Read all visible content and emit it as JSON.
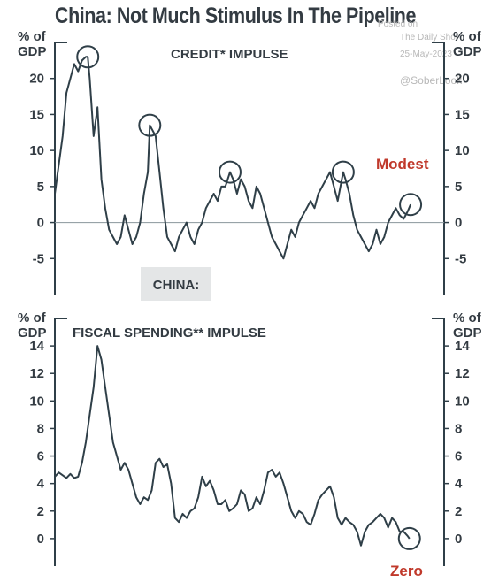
{
  "title": "China: Not Much Stimulus In The Pipeline",
  "watermark": {
    "line1": "Posted on",
    "line2": "The Daily Shot",
    "line3": "25-May-2023",
    "handle": "@SoberLook"
  },
  "colors": {
    "line": "#2f3f48",
    "title": "#333b42",
    "highlight": "#c0392b",
    "grid": "#8a969c",
    "label_box": "#e4e6e7"
  },
  "chart_data": [
    {
      "type": "line",
      "title": "CREDIT* IMPULSE",
      "unit_left": [
        "% of",
        "GDP"
      ],
      "unit_right": [
        "% of",
        "GDP"
      ],
      "ylim": [
        -10,
        25
      ],
      "yticks": [
        20,
        15,
        10,
        5,
        0,
        -5
      ],
      "country_label": "CHINA:",
      "annotation": "Modest",
      "circled_points": [
        [
          0.085,
          23
        ],
        [
          0.245,
          13.5
        ],
        [
          0.452,
          7
        ],
        [
          0.744,
          7
        ],
        [
          0.918,
          2.5
        ]
      ],
      "series": [
        {
          "x": [
            0,
            0.01,
            0.02,
            0.03,
            0.04,
            0.05,
            0.06,
            0.07,
            0.08,
            0.085,
            0.09,
            0.1,
            0.11,
            0.12,
            0.13,
            0.14,
            0.15,
            0.16,
            0.17,
            0.18,
            0.19,
            0.2,
            0.21,
            0.22,
            0.23,
            0.24,
            0.245,
            0.25,
            0.26,
            0.27,
            0.28,
            0.29,
            0.3,
            0.31,
            0.32,
            0.33,
            0.34,
            0.35,
            0.36,
            0.37,
            0.38,
            0.39,
            0.4,
            0.41,
            0.42,
            0.43,
            0.44,
            0.452,
            0.46,
            0.47,
            0.48,
            0.49,
            0.5,
            0.51,
            0.52,
            0.53,
            0.54,
            0.55,
            0.56,
            0.57,
            0.58,
            0.59,
            0.6,
            0.61,
            0.62,
            0.63,
            0.64,
            0.65,
            0.66,
            0.67,
            0.68,
            0.69,
            0.7,
            0.71,
            0.72,
            0.73,
            0.744,
            0.75,
            0.76,
            0.77,
            0.78,
            0.79,
            0.8,
            0.81,
            0.82,
            0.83,
            0.84,
            0.85,
            0.86,
            0.87,
            0.88,
            0.89,
            0.9,
            0.91,
            0.918
          ],
          "y": [
            4,
            8,
            12,
            18,
            20,
            22,
            21,
            22.5,
            23,
            23,
            20,
            12,
            16,
            6,
            2,
            -1,
            -2,
            -3,
            -2,
            1,
            -1,
            -3,
            -2,
            0,
            4,
            7,
            13.5,
            13,
            12,
            7,
            2,
            -2,
            -3,
            -4,
            -2,
            -1,
            0,
            -2,
            -3,
            -1,
            0,
            2,
            3,
            4,
            3,
            5,
            5,
            7,
            6,
            4,
            6,
            5,
            3,
            2,
            5,
            4,
            2,
            0,
            -2,
            -3,
            -4,
            -5,
            -3,
            -1,
            -2,
            0,
            1,
            2,
            3,
            2,
            4,
            5,
            6,
            7,
            5,
            3,
            7,
            6,
            4,
            1,
            -1,
            -2,
            -3,
            -4,
            -3,
            -1,
            -3,
            -2,
            0,
            1,
            2,
            1,
            0.5,
            1.5,
            2.5
          ]
        }
      ]
    },
    {
      "type": "line",
      "title": "FISCAL SPENDING** IMPULSE",
      "unit_left": [
        "% of",
        "GDP"
      ],
      "unit_right": [
        "% of",
        "GDP"
      ],
      "ylim": [
        -2,
        16
      ],
      "yticks": [
        14,
        12,
        10,
        8,
        6,
        4,
        2,
        0
      ],
      "annotation": "Zero",
      "circled_points": [
        [
          0.915,
          0
        ]
      ],
      "series": [
        {
          "x": [
            0,
            0.01,
            0.02,
            0.03,
            0.04,
            0.05,
            0.06,
            0.07,
            0.08,
            0.09,
            0.1,
            0.11,
            0.12,
            0.13,
            0.14,
            0.15,
            0.16,
            0.17,
            0.18,
            0.19,
            0.2,
            0.21,
            0.22,
            0.23,
            0.24,
            0.25,
            0.26,
            0.27,
            0.28,
            0.29,
            0.3,
            0.31,
            0.32,
            0.33,
            0.34,
            0.35,
            0.36,
            0.37,
            0.38,
            0.39,
            0.4,
            0.41,
            0.42,
            0.43,
            0.44,
            0.45,
            0.46,
            0.47,
            0.48,
            0.49,
            0.5,
            0.51,
            0.52,
            0.53,
            0.54,
            0.55,
            0.56,
            0.57,
            0.58,
            0.59,
            0.6,
            0.61,
            0.62,
            0.63,
            0.64,
            0.65,
            0.66,
            0.67,
            0.68,
            0.69,
            0.7,
            0.71,
            0.72,
            0.73,
            0.74,
            0.75,
            0.76,
            0.77,
            0.78,
            0.79,
            0.8,
            0.81,
            0.82,
            0.83,
            0.84,
            0.85,
            0.86,
            0.87,
            0.88,
            0.89,
            0.9,
            0.91,
            0.915
          ],
          "y": [
            4.5,
            4.8,
            4.6,
            4.4,
            4.7,
            4.4,
            4.5,
            5.5,
            7,
            9,
            11,
            14,
            13,
            11,
            9,
            7,
            6,
            5,
            5.5,
            5,
            4,
            3,
            2.5,
            3,
            2.8,
            3.5,
            5.5,
            5.8,
            5.2,
            5.4,
            4,
            1.5,
            1.2,
            1.8,
            1.5,
            2,
            2.2,
            3,
            4.5,
            3.8,
            4.2,
            3.5,
            2.5,
            2.5,
            2.8,
            2,
            2.2,
            2.5,
            3.5,
            3.2,
            2,
            2.2,
            3,
            2.5,
            3.5,
            4.8,
            5,
            4.5,
            4.8,
            4,
            3,
            2,
            1.5,
            2,
            1.8,
            1.2,
            1,
            1.8,
            2.8,
            3.2,
            3.5,
            3.8,
            3,
            1.5,
            1,
            1.5,
            1.2,
            1,
            0.5,
            -0.5,
            0.5,
            1,
            1.2,
            1.5,
            1.8,
            1.5,
            0.8,
            1.5,
            1.2,
            0.5,
            0.5,
            0.2,
            0
          ]
        }
      ]
    }
  ]
}
